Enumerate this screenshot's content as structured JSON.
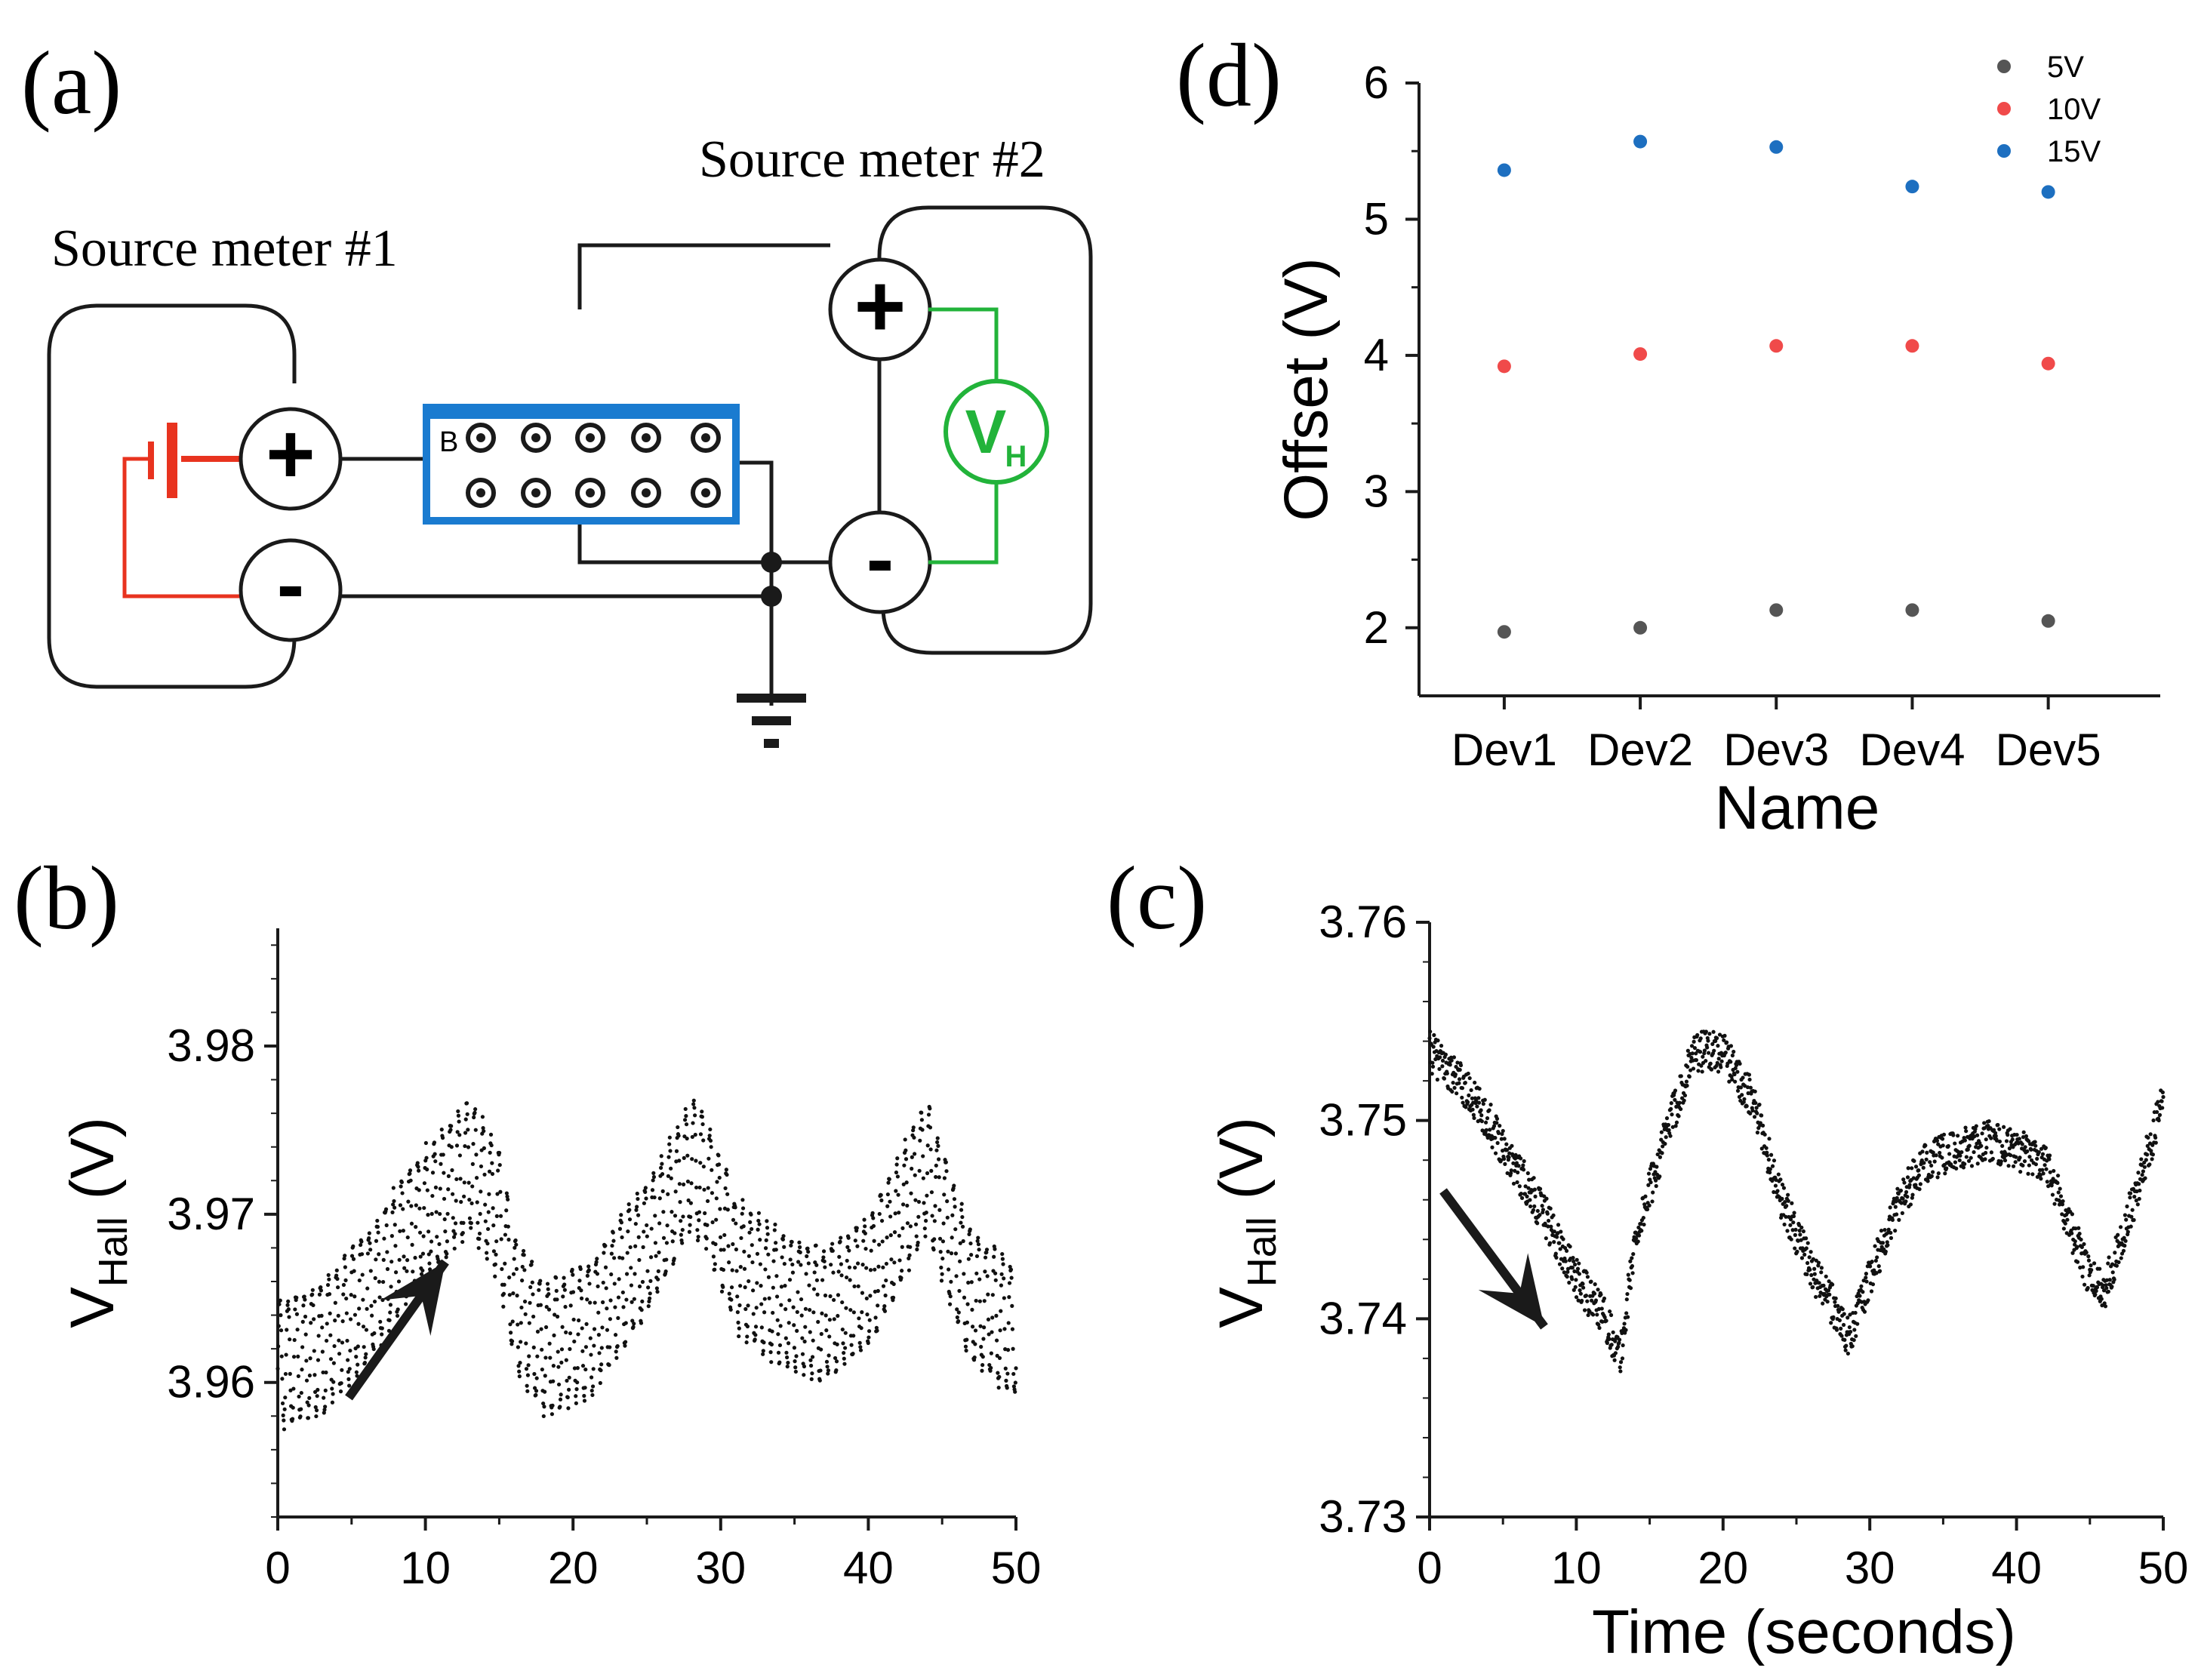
{
  "panels": {
    "a": {
      "label": "(a)",
      "meter1_label": "Source meter #1",
      "meter2_label": "Source meter #2",
      "plus_symbol": "+",
      "minus_symbol": "-",
      "vh_main": "V",
      "vh_sub": "H",
      "board_label": "B",
      "colors": {
        "battery": "#e8331f",
        "voltmeter": "#22b33a",
        "board": "#1a7bd0",
        "wire": "#1a1a1a"
      }
    },
    "b": {
      "label": "(b)"
    },
    "c": {
      "label": "(c)"
    },
    "d": {
      "label": "(d)"
    }
  },
  "chart_data": [
    {
      "id": "d",
      "type": "scatter",
      "title": "",
      "xlabel": "Name",
      "ylabel": "Offset (V)",
      "categories": [
        "Dev1",
        "Dev2",
        "Dev3",
        "Dev4",
        "Dev5"
      ],
      "ylim": [
        1.5,
        6.0
      ],
      "yticks": [
        2,
        3,
        4,
        5,
        6
      ],
      "legend_position": "top-right",
      "series": [
        {
          "name": "5V",
          "color": "#555555",
          "values": [
            1.97,
            2.0,
            2.13,
            2.13,
            2.05
          ]
        },
        {
          "name": "10V",
          "color": "#f04a4a",
          "values": [
            3.92,
            4.01,
            4.07,
            4.07,
            3.94
          ]
        },
        {
          "name": "15V",
          "color": "#1d6fc0",
          "values": [
            5.36,
            5.57,
            5.53,
            5.24,
            5.2
          ]
        }
      ]
    },
    {
      "id": "b",
      "type": "scatter",
      "title": "",
      "xlabel": "",
      "ylabel_main": "V",
      "ylabel_sub": "Hall",
      "ylabel_unit": " (V)",
      "xlim": [
        0,
        50
      ],
      "ylim": [
        3.952,
        3.987
      ],
      "xticks": [
        0,
        10,
        20,
        30,
        40,
        50
      ],
      "yticks": [
        "3.96",
        "3.97",
        "3.98"
      ],
      "series": [
        {
          "name": "V_Hall",
          "color": "#111111",
          "profile": [
            [
              0,
              3.961
            ],
            [
              3,
              3.962
            ],
            [
              6,
              3.965
            ],
            [
              9,
              3.969
            ],
            [
              13,
              3.973
            ],
            [
              15,
              3.97
            ],
            [
              16,
              3.965
            ],
            [
              18,
              3.962
            ],
            [
              21,
              3.963
            ],
            [
              25,
              3.968
            ],
            [
              28,
              3.973
            ],
            [
              29,
              3.972
            ],
            [
              31,
              3.967
            ],
            [
              34,
              3.965
            ],
            [
              37,
              3.964
            ],
            [
              40,
              3.966
            ],
            [
              44,
              3.973
            ],
            [
              45,
              3.97
            ],
            [
              47,
              3.965
            ],
            [
              50,
              3.963
            ]
          ],
          "oscillation_amplitude": 0.0038
        }
      ],
      "annotation": "arrow pointing up-right"
    },
    {
      "id": "c",
      "type": "scatter",
      "title": "",
      "xlabel": "Time (seconds)",
      "ylabel_main": "V",
      "ylabel_sub": "Hall",
      "ylabel_unit": " (V)",
      "xlim": [
        0,
        50
      ],
      "ylim": [
        3.73,
        3.76
      ],
      "xticks": [
        0,
        10,
        20,
        30,
        40,
        50
      ],
      "yticks": [
        "3.73",
        "3.74",
        "3.75",
        "3.76"
      ],
      "series": [
        {
          "name": "V_Hall",
          "color": "#111111",
          "profile": [
            [
              0,
              3.7535
            ],
            [
              2,
              3.752
            ],
            [
              4,
              3.75
            ],
            [
              6,
              3.7475
            ],
            [
              8,
              3.745
            ],
            [
              10,
              3.742
            ],
            [
              12,
              3.74
            ],
            [
              13,
              3.738
            ],
            [
              14,
              3.744
            ],
            [
              16,
              3.749
            ],
            [
              18,
              3.7535
            ],
            [
              20,
              3.7535
            ],
            [
              22,
              3.751
            ],
            [
              24,
              3.746
            ],
            [
              26,
              3.7425
            ],
            [
              28,
              3.74
            ],
            [
              28.5,
              3.739
            ],
            [
              30,
              3.742
            ],
            [
              32,
              3.746
            ],
            [
              34,
              3.748
            ],
            [
              36,
              3.7485
            ],
            [
              38,
              3.749
            ],
            [
              40,
              3.7485
            ],
            [
              42,
              3.748
            ],
            [
              44,
              3.744
            ],
            [
              45,
              3.742
            ],
            [
              46,
              3.7415
            ],
            [
              48,
              3.746
            ],
            [
              50,
              3.751
            ]
          ],
          "noise_amplitude": 0.0013
        }
      ],
      "annotation": "arrow pointing down-right"
    }
  ]
}
